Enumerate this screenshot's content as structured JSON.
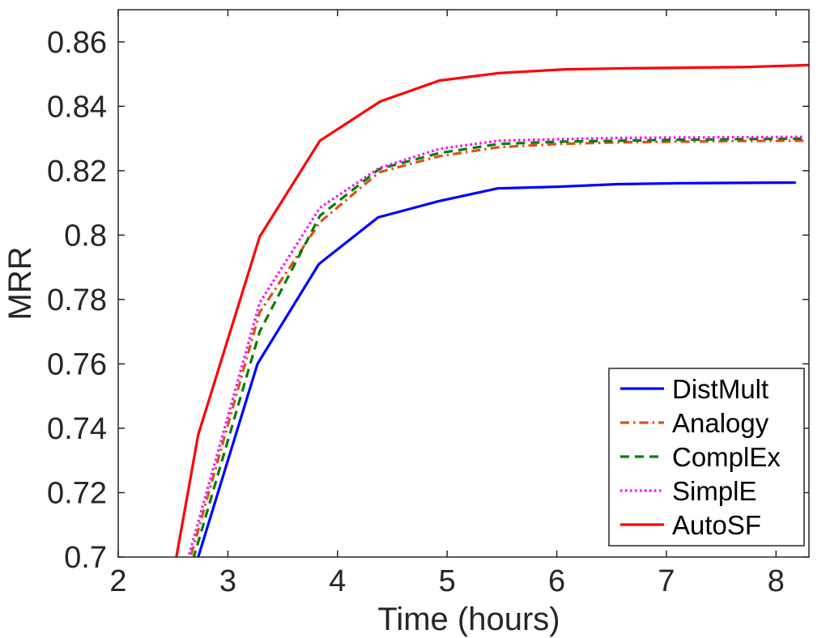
{
  "chart_data": {
    "type": "line",
    "title": "",
    "xlabel": "Time (hours)",
    "ylabel": "MRR",
    "xlim": [
      2,
      8.3
    ],
    "ylim": [
      0.7,
      0.87
    ],
    "xticks": [
      2,
      3,
      4,
      5,
      6,
      7,
      8
    ],
    "xtick_labels": [
      "2",
      "3",
      "4",
      "5",
      "6",
      "7",
      "8"
    ],
    "yticks": [
      0.7,
      0.72,
      0.74,
      0.76,
      0.78,
      0.8,
      0.82,
      0.84,
      0.86
    ],
    "ytick_labels": [
      "0.7",
      "0.72",
      "0.74",
      "0.76",
      "0.78",
      "0.8",
      "0.82",
      "0.84",
      "0.86"
    ],
    "grid": false,
    "legend_position": "bottom-right",
    "series": [
      {
        "name": "DistMult",
        "color": "#0000ff",
        "style": "solid",
        "x": [
          2.69,
          2.73,
          3.27,
          3.83,
          4.37,
          4.92,
          5.46,
          6.0,
          6.55,
          7.1,
          7.64,
          8.18
        ],
        "y": [
          0.695,
          0.7,
          0.76,
          0.791,
          0.8055,
          0.8105,
          0.8145,
          0.815,
          0.8158,
          0.8161,
          0.8162,
          0.8163
        ]
      },
      {
        "name": "Analogy",
        "color": "#d95319",
        "style": "dash-dot",
        "x": [
          2.62,
          2.66,
          3.29,
          3.84,
          4.38,
          4.93,
          5.47,
          6.02,
          6.57,
          7.11,
          7.66,
          8.28
        ],
        "y": [
          0.695,
          0.7,
          0.776,
          0.804,
          0.8195,
          0.8245,
          0.8273,
          0.8283,
          0.8288,
          0.829,
          0.8292,
          0.8293
        ]
      },
      {
        "name": "ComplEx",
        "color": "#008000",
        "style": "dashed",
        "x": [
          2.64,
          2.69,
          3.29,
          3.84,
          4.38,
          4.93,
          5.47,
          6.02,
          6.57,
          7.11,
          7.66,
          8.28
        ],
        "y": [
          0.695,
          0.7,
          0.77,
          0.806,
          0.8205,
          0.8255,
          0.8283,
          0.829,
          0.8293,
          0.8296,
          0.8298,
          0.83
        ]
      },
      {
        "name": "SimplE",
        "color": "#ff00ff",
        "style": "dotted",
        "x": [
          2.6,
          2.64,
          3.29,
          3.84,
          4.38,
          4.93,
          5.47,
          6.02,
          6.57,
          7.11,
          7.66,
          8.25
        ],
        "y": [
          0.695,
          0.7,
          0.779,
          0.8085,
          0.8208,
          0.8268,
          0.8293,
          0.8298,
          0.8302,
          0.8303,
          0.8304,
          0.8305
        ]
      },
      {
        "name": "AutoSF",
        "color": "#ff0000",
        "style": "solid",
        "x": [
          2.53,
          2.73,
          3.29,
          3.84,
          4.39,
          4.93,
          5.47,
          6.08,
          6.62,
          7.17,
          7.71,
          8.3
        ],
        "y": [
          0.7,
          0.738,
          0.7995,
          0.8293,
          0.8415,
          0.848,
          0.8503,
          0.8515,
          0.8518,
          0.852,
          0.8522,
          0.8528
        ]
      }
    ]
  }
}
